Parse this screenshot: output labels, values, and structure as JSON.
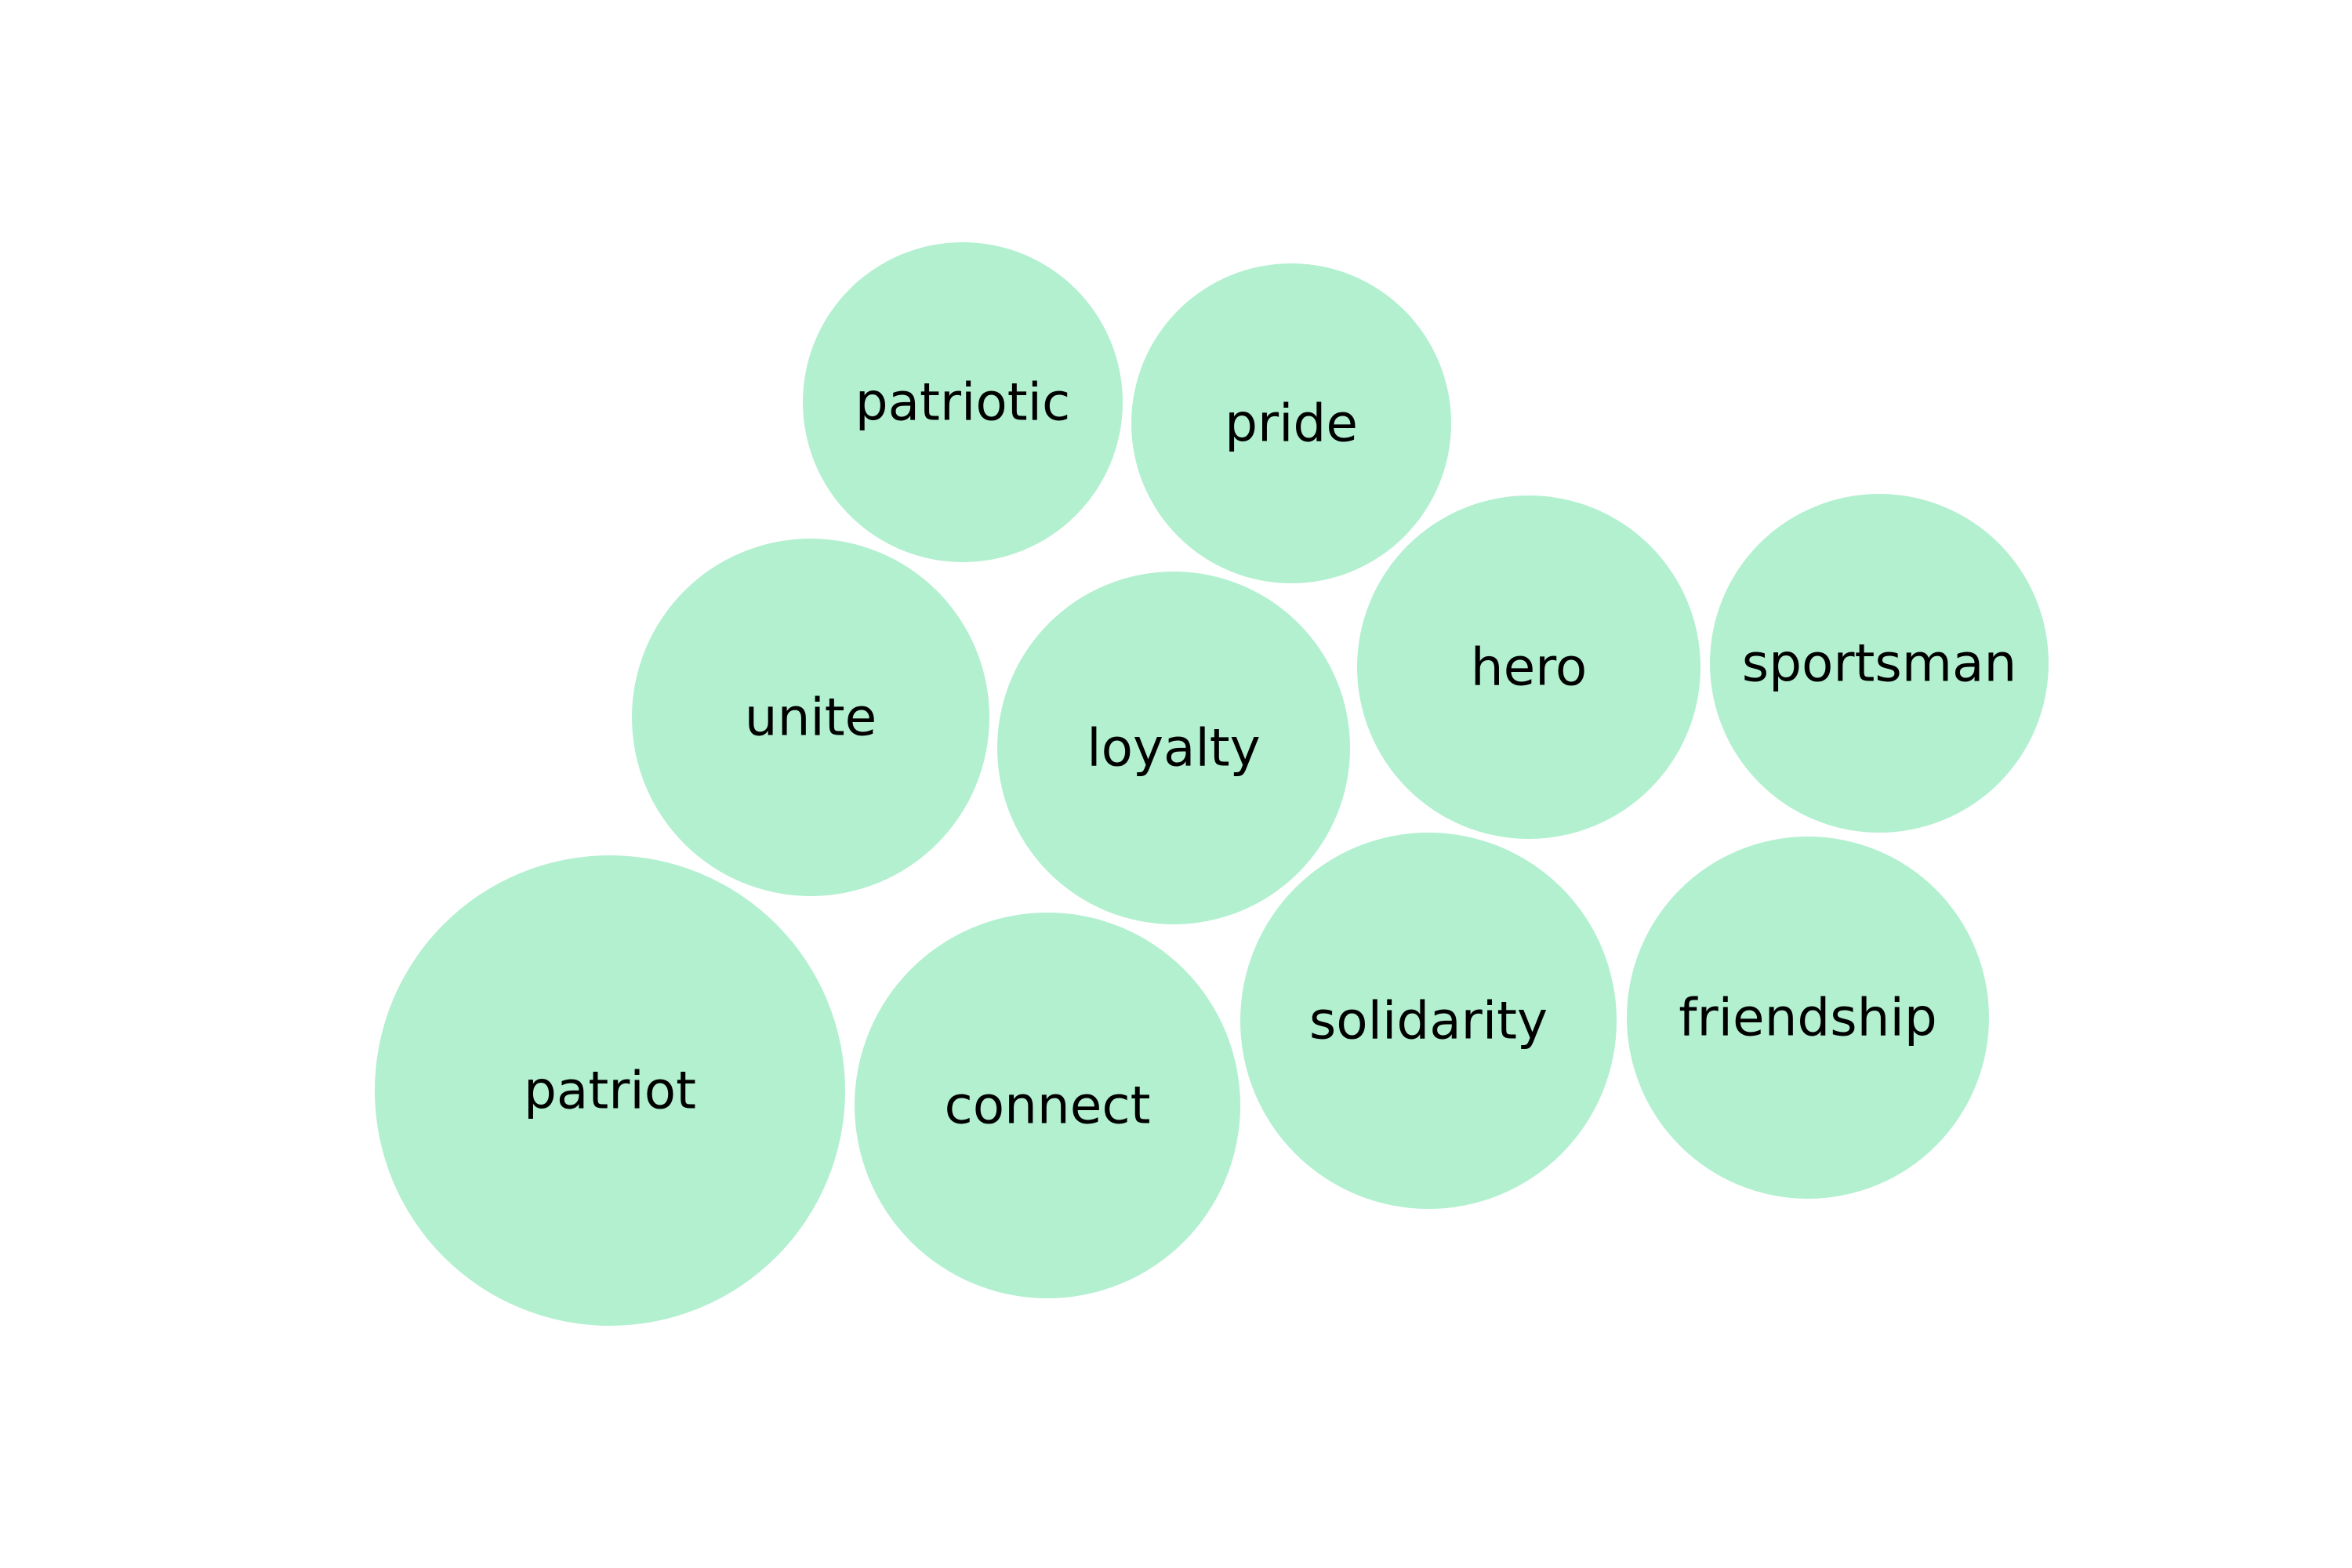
{
  "chart_data": {
    "type": "bubble",
    "bubble_color": "#b2f0d0",
    "background": "#ffffff",
    "label_color": "#000000",
    "bubbles": [
      {
        "label": "patriot",
        "size": 1.0
      },
      {
        "label": "connect",
        "size": 0.82
      },
      {
        "label": "solidarity",
        "size": 0.8
      },
      {
        "label": "friendship",
        "size": 0.77
      },
      {
        "label": "unite",
        "size": 0.76
      },
      {
        "label": "loyalty",
        "size": 0.75
      },
      {
        "label": "hero",
        "size": 0.73
      },
      {
        "label": "sportsman",
        "size": 0.72
      },
      {
        "label": "patriotic",
        "size": 0.68
      },
      {
        "label": "pride",
        "size": 0.68
      }
    ]
  }
}
